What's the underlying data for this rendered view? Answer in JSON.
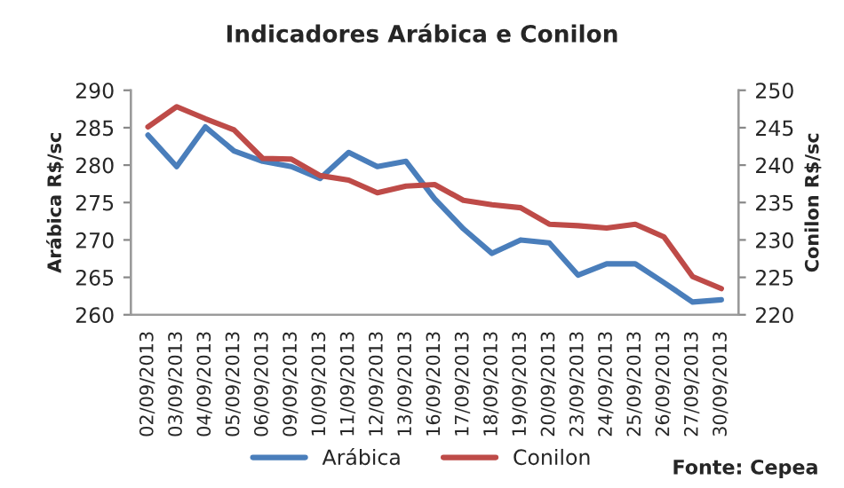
{
  "chart_data": {
    "type": "line",
    "title": "Indicadores Arábica e Conilon",
    "ylabel": "Arábica R$/sc",
    "y2label": "Conilon R$/sc",
    "categories": [
      "02/09/2013",
      "03/09/2013",
      "04/09/2013",
      "05/09/2013",
      "06/09/2013",
      "09/09/2013",
      "10/09/2013",
      "11/09/2013",
      "12/09/2013",
      "13/09/2013",
      "16/09/2013",
      "17/09/2013",
      "18/09/2013",
      "19/09/2013",
      "20/09/2013",
      "23/09/2013",
      "24/09/2013",
      "25/09/2013",
      "26/09/2013",
      "27/09/2013",
      "30/09/2013"
    ],
    "series": [
      {
        "name": "Arábica",
        "color": "#4a7ebb",
        "values": [
          284.0,
          279.8,
          285.1,
          281.9,
          280.5,
          279.8,
          278.2,
          281.7,
          279.8,
          280.5,
          275.5,
          271.5,
          268.2,
          270.0,
          269.6,
          265.3,
          266.8,
          266.8,
          264.3,
          261.7,
          262.0
        ]
      },
      {
        "name": "Conilon",
        "color": "#be4b48",
        "axis": "y2",
        "values": [
          245.1,
          247.8,
          246.2,
          244.7,
          240.9,
          240.8,
          238.6,
          238.0,
          236.3,
          237.2,
          237.4,
          235.3,
          234.7,
          234.3,
          232.1,
          231.9,
          231.6,
          232.1,
          230.4,
          225.1,
          223.5
        ]
      }
    ],
    "ylim": [
      260,
      290
    ],
    "yticks": [
      260,
      265,
      270,
      275,
      280,
      285,
      290
    ],
    "y2lim": [
      220,
      250
    ],
    "y2ticks": [
      220,
      225,
      230,
      235,
      240,
      245,
      250
    ],
    "grid": false,
    "legend": "bottom",
    "marker": "none",
    "line_style": "solid",
    "annotations": [
      "Fonte: Cepea"
    ]
  }
}
